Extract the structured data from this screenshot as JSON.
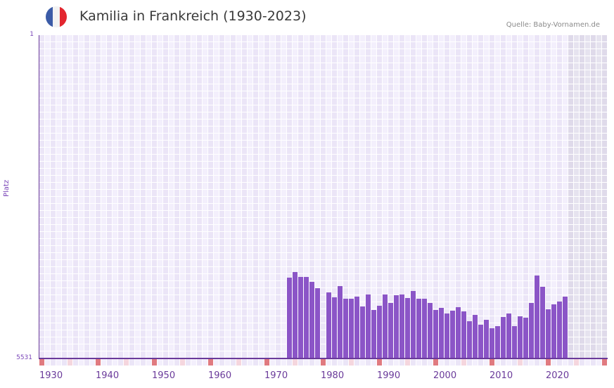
{
  "header": {
    "title": "Kamilia in Frankreich (1930-2023)",
    "source": "Quelle: Baby-Vornamen.de",
    "flag_colors": [
      "#3b5ba7",
      "#f2f2f2",
      "#e3262f"
    ]
  },
  "axes": {
    "ylabel": "Platz",
    "ytick_top": "1",
    "ytick_bottom": "5531",
    "xticks": [
      "1930",
      "1940",
      "1950",
      "1960",
      "1970",
      "1980",
      "1990",
      "2000",
      "2010",
      "2020"
    ]
  },
  "colors": {
    "bar": "#8b55c7",
    "grid_a": "#f3effc",
    "grid_b": "#ebe5f7",
    "future_a": "#e6e3ef",
    "future_b": "#dfdaea",
    "decade_tick": "#e07a80",
    "half_decade_tick": "#f5d6de",
    "axis": "#6a3a9a"
  },
  "chart_data": {
    "type": "bar",
    "title": "Kamilia in Frankreich (1930-2023)",
    "xlabel": "",
    "ylabel": "Platz",
    "ylim": [
      5531,
      1
    ],
    "y_inverted": true,
    "grid": true,
    "legend": null,
    "note": "Bars rise from the bottom (rank 5531); taller bar = better rank. No data before 1974 and in 1980.",
    "x": [
      1974,
      1975,
      1976,
      1977,
      1978,
      1979,
      1981,
      1982,
      1983,
      1984,
      1985,
      1986,
      1987,
      1988,
      1989,
      1990,
      1991,
      1992,
      1993,
      1994,
      1995,
      1996,
      1997,
      1998,
      1999,
      2000,
      2001,
      2002,
      2003,
      2004,
      2005,
      2006,
      2007,
      2008,
      2009,
      2010,
      2011,
      2012,
      2013,
      2014,
      2015,
      2016,
      2017,
      2018,
      2019,
      2020,
      2021,
      2022,
      2023
    ],
    "values": [
      4147,
      4051,
      4135,
      4135,
      4219,
      4327,
      4399,
      4484,
      4291,
      4508,
      4508,
      4472,
      4640,
      4436,
      4700,
      4628,
      4436,
      4580,
      4448,
      4436,
      4496,
      4376,
      4508,
      4508,
      4580,
      4700,
      4664,
      4760,
      4712,
      4652,
      4724,
      4893,
      4784,
      4953,
      4869,
      5013,
      4977,
      4821,
      4760,
      4977,
      4809,
      4833,
      4580,
      4111,
      4303,
      4688,
      4604,
      4556,
      4472
    ]
  }
}
